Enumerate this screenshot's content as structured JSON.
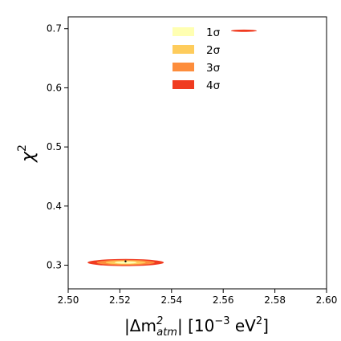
{
  "chart_data": {
    "type": "contour",
    "xlabel": {
      "main": "|Δm",
      "sup": "2",
      "sub": "atm",
      "rest": "| [10",
      "exp": "−3",
      "unit": " eV",
      "unitsup": "2",
      "close": "]"
    },
    "ylabel": {
      "main": "χ",
      "sup": "2"
    },
    "xlim": [
      2.5,
      2.6
    ],
    "ylim": [
      0.26,
      0.72
    ],
    "xticks": [
      "2.50",
      "2.52",
      "2.54",
      "2.56",
      "2.58",
      "2.60"
    ],
    "xtick_values": [
      2.5,
      2.52,
      2.54,
      2.56,
      2.58,
      2.6
    ],
    "yticks": [
      "0.3",
      "0.4",
      "0.5",
      "0.6",
      "0.7"
    ],
    "ytick_values": [
      0.3,
      0.4,
      0.5,
      0.6,
      0.7
    ],
    "legend_position": "top-center",
    "series": [
      {
        "name": "1σ",
        "color": "#ffffb2"
      },
      {
        "name": "2σ",
        "color": "#fecc5c"
      },
      {
        "name": "3σ",
        "color": "#fd8d3c"
      },
      {
        "name": "4σ",
        "color": "#f03b20"
      }
    ],
    "regions": [
      {
        "center": [
          2.5222,
          0.3045
        ],
        "levels": [
          {
            "sigma": "4σ",
            "x_range": [
              2.5075,
              2.537
            ],
            "y_range": [
              0.2985,
              0.3105
            ]
          },
          {
            "sigma": "3σ",
            "x_range": [
              2.511,
              2.5335
            ],
            "y_range": [
              0.3,
              0.309
            ]
          },
          {
            "sigma": "2σ",
            "x_range": [
              2.5145,
              2.53
            ],
            "y_range": [
              0.3015,
              0.3075
            ]
          },
          {
            "sigma": "1σ",
            "x_range": [
              2.518,
              2.5265
            ],
            "y_range": [
              0.3025,
              0.3065
            ]
          }
        ]
      },
      {
        "center": [
          2.568,
          0.6965
        ],
        "levels": [
          {
            "sigma": "4σ",
            "x_range": [
              2.563,
              2.573
            ],
            "y_range": [
              0.6945,
              0.6985
            ]
          }
        ]
      }
    ],
    "best_fit": [
      2.5222,
      0.3065
    ]
  }
}
